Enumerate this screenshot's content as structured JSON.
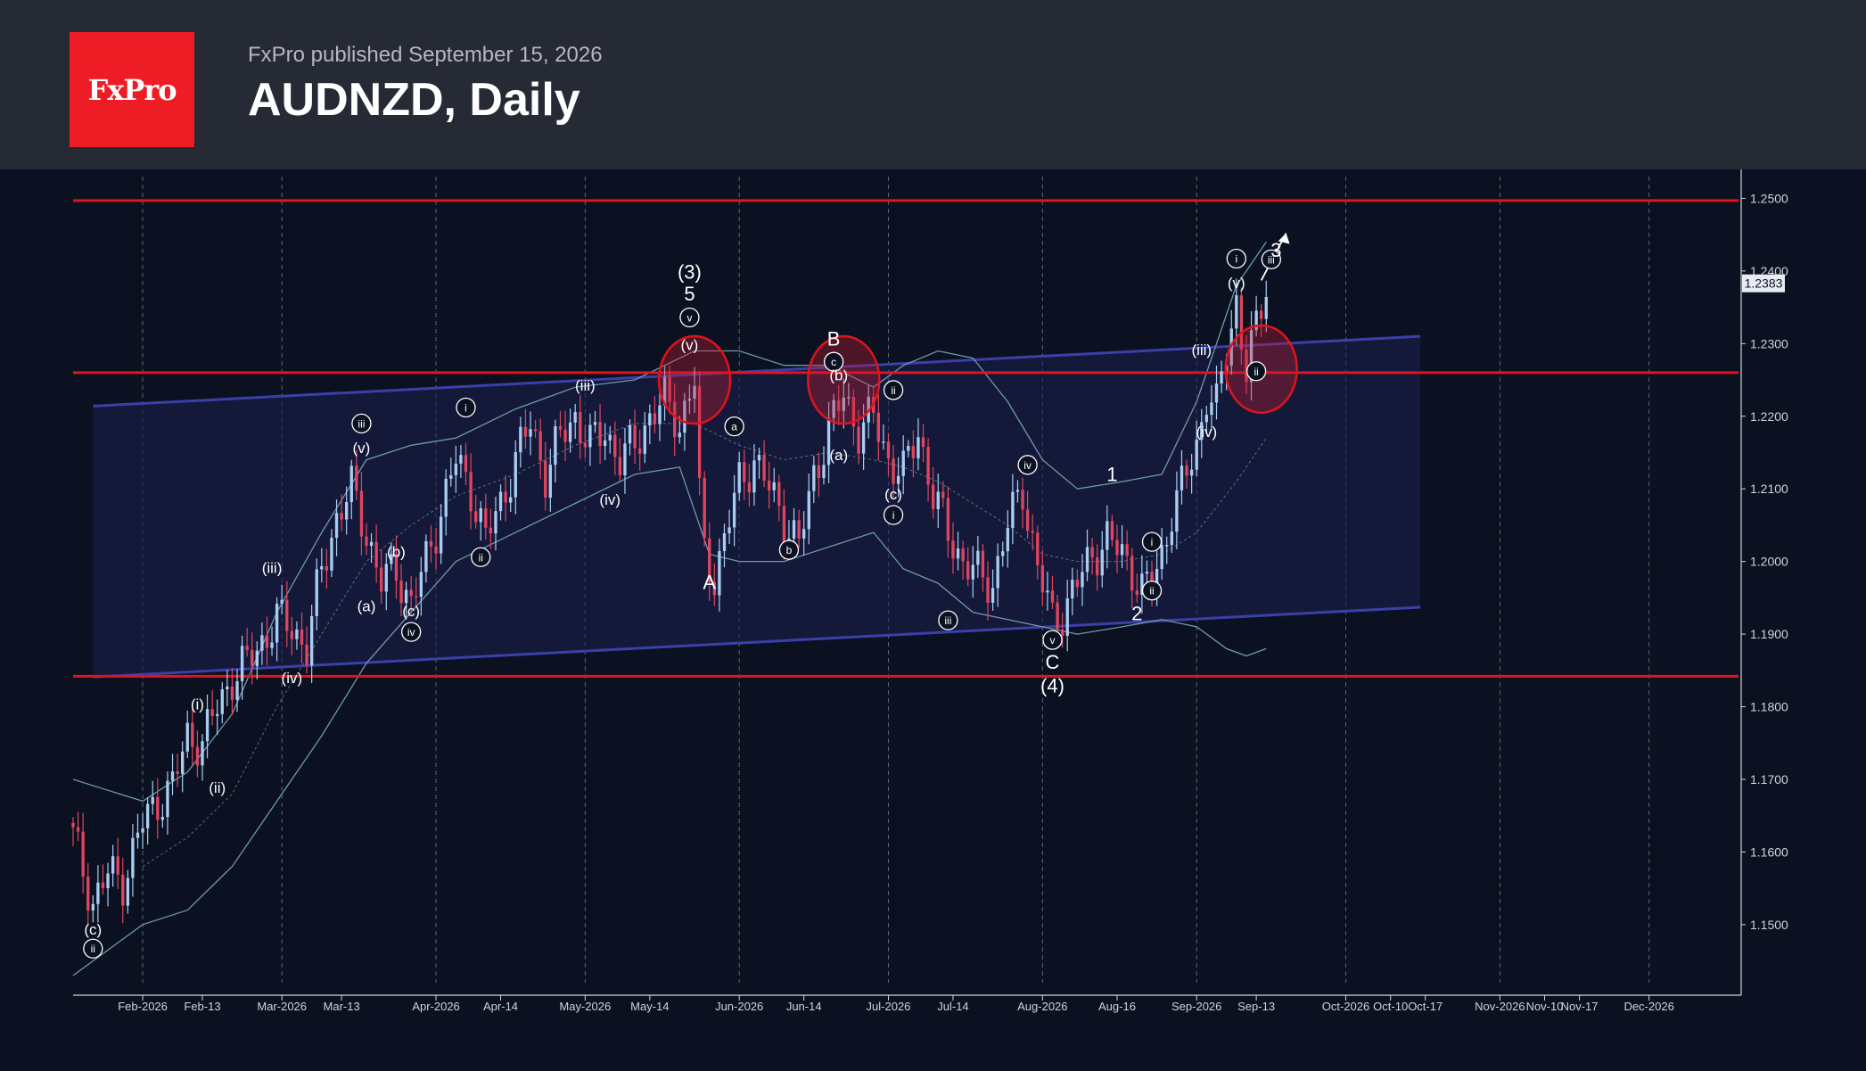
{
  "header": {
    "logo_text": "FxPro",
    "published": "FxPro published September 15, 2026",
    "title": "AUDNZD, Daily"
  },
  "colors": {
    "header_bg": "#262a35",
    "chart_bg": "#0b1120",
    "logo_bg": "#ee1c25",
    "candle_up": "#a9cdf2",
    "candle_down": "#e0455e",
    "resistance_line": "#e0141c",
    "channel_line": "#3b3fa8",
    "channel_fill": "#1d2150",
    "bollinger": "#6d9aa8"
  },
  "chart_data": {
    "type": "candlestick",
    "symbol": "AUDNZD",
    "timeframe": "Daily",
    "current_price": "1.2383",
    "ylim": [
      1.142,
      1.253
    ],
    "y_ticks": [
      "1.2500",
      "1.2400",
      "1.2300",
      "1.2200",
      "1.2100",
      "1.2000",
      "1.1900",
      "1.1800",
      "1.1700",
      "1.1600",
      "1.1500"
    ],
    "x_ticks": [
      {
        "label": "Feb-2026",
        "day": 0
      },
      {
        "label": "Feb-13",
        "day": 12
      },
      {
        "label": "Mar-2026",
        "day": 28
      },
      {
        "label": "Mar-13",
        "day": 40
      },
      {
        "label": "Apr-2026",
        "day": 59
      },
      {
        "label": "Apr-14",
        "day": 72
      },
      {
        "label": "May-2026",
        "day": 89
      },
      {
        "label": "May-14",
        "day": 102
      },
      {
        "label": "Jun-2026",
        "day": 120
      },
      {
        "label": "Jun-14",
        "day": 133
      },
      {
        "label": "Jul-2026",
        "day": 150
      },
      {
        "label": "Jul-14",
        "day": 163
      },
      {
        "label": "Aug-2026",
        "day": 181
      },
      {
        "label": "Aug-16",
        "day": 196
      },
      {
        "label": "Sep-2026",
        "day": 212
      },
      {
        "label": "Sep-13",
        "day": 224
      },
      {
        "label": "Oct-2026",
        "day": 242
      },
      {
        "label": "Oct-10",
        "day": 251
      },
      {
        "label": "Oct-17",
        "day": 258
      },
      {
        "label": "Nov-2026",
        "day": 273
      },
      {
        "label": "Nov-10",
        "day": 282
      },
      {
        "label": "Nov-17",
        "day": 289
      },
      {
        "label": "Dec-2026",
        "day": 303
      }
    ],
    "day_range": [
      -14,
      321
    ],
    "gridline_days": [
      0,
      28,
      59,
      89,
      120,
      150,
      181,
      212,
      242,
      273,
      303
    ],
    "horizontal_levels": [
      1.2497,
      1.226,
      1.1842
    ],
    "channel": {
      "upper": [
        [
          -10,
          1.2214
        ],
        [
          257,
          1.231
        ]
      ],
      "lower": [
        [
          -10,
          1.1841
        ],
        [
          257,
          1.1937
        ]
      ],
      "fill_from_day": -10,
      "fill_to_day": 257
    },
    "candle_keypoints": [
      [
        -14,
        1.162
      ],
      [
        -10,
        1.153
      ],
      [
        -7,
        1.157
      ],
      [
        -4,
        1.156
      ],
      [
        0,
        1.164
      ],
      [
        3,
        1.167
      ],
      [
        6,
        1.169
      ],
      [
        9,
        1.176
      ],
      [
        12,
        1.175
      ],
      [
        15,
        1.18
      ],
      [
        18,
        1.184
      ],
      [
        21,
        1.186
      ],
      [
        24,
        1.189
      ],
      [
        27,
        1.192
      ],
      [
        30,
        1.191
      ],
      [
        33,
        1.188
      ],
      [
        36,
        1.199
      ],
      [
        39,
        1.206
      ],
      [
        42,
        1.21
      ],
      [
        45,
        1.204
      ],
      [
        48,
        1.197
      ],
      [
        51,
        1.199
      ],
      [
        54,
        1.194
      ],
      [
        57,
        1.2
      ],
      [
        60,
        1.207
      ],
      [
        63,
        1.214
      ],
      [
        66,
        1.21
      ],
      [
        69,
        1.203
      ],
      [
        72,
        1.208
      ],
      [
        75,
        1.214
      ],
      [
        78,
        1.219
      ],
      [
        81,
        1.212
      ],
      [
        84,
        1.217
      ],
      [
        87,
        1.22
      ],
      [
        90,
        1.216
      ],
      [
        93,
        1.218
      ],
      [
        96,
        1.214
      ],
      [
        99,
        1.216
      ],
      [
        102,
        1.22
      ],
      [
        105,
        1.222
      ],
      [
        108,
        1.219
      ],
      [
        111,
        1.225
      ],
      [
        112,
        1.209
      ],
      [
        113,
        1.201
      ],
      [
        115,
        1.198
      ],
      [
        117,
        1.203
      ],
      [
        120,
        1.211
      ],
      [
        123,
        1.214
      ],
      [
        126,
        1.21
      ],
      [
        129,
        1.206
      ],
      [
        132,
        1.202
      ],
      [
        135,
        1.212
      ],
      [
        138,
        1.218
      ],
      [
        141,
        1.223
      ],
      [
        144,
        1.218
      ],
      [
        147,
        1.22
      ],
      [
        150,
        1.214
      ],
      [
        153,
        1.212
      ],
      [
        156,
        1.218
      ],
      [
        159,
        1.209
      ],
      [
        162,
        1.204
      ],
      [
        165,
        1.2
      ],
      [
        168,
        1.198
      ],
      [
        171,
        1.197
      ],
      [
        174,
        1.205
      ],
      [
        177,
        1.21
      ],
      [
        180,
        1.199
      ],
      [
        183,
        1.192
      ],
      [
        185,
        1.193
      ],
      [
        188,
        1.197
      ],
      [
        191,
        1.201
      ],
      [
        194,
        1.203
      ],
      [
        197,
        1.201
      ],
      [
        199,
        1.199
      ],
      [
        201,
        1.196
      ],
      [
        203,
        1.197
      ],
      [
        205,
        1.201
      ],
      [
        207,
        1.207
      ],
      [
        209,
        1.21
      ],
      [
        212,
        1.216
      ],
      [
        214,
        1.223
      ],
      [
        216,
        1.221
      ],
      [
        218,
        1.229
      ],
      [
        220,
        1.236
      ],
      [
        222,
        1.226
      ],
      [
        224,
        1.232
      ],
      [
        226,
        1.2383
      ]
    ],
    "bollinger_upper": [
      [
        -14,
        1.17
      ],
      [
        0,
        1.167
      ],
      [
        9,
        1.171
      ],
      [
        18,
        1.179
      ],
      [
        27,
        1.193
      ],
      [
        36,
        1.204
      ],
      [
        45,
        1.214
      ],
      [
        54,
        1.216
      ],
      [
        63,
        1.217
      ],
      [
        75,
        1.221
      ],
      [
        87,
        1.224
      ],
      [
        99,
        1.225
      ],
      [
        111,
        1.229
      ],
      [
        120,
        1.229
      ],
      [
        129,
        1.227
      ],
      [
        138,
        1.227
      ],
      [
        147,
        1.224
      ],
      [
        153,
        1.227
      ],
      [
        160,
        1.229
      ],
      [
        167,
        1.228
      ],
      [
        174,
        1.222
      ],
      [
        181,
        1.214
      ],
      [
        188,
        1.21
      ],
      [
        197,
        1.211
      ],
      [
        205,
        1.212
      ],
      [
        212,
        1.222
      ],
      [
        220,
        1.238
      ],
      [
        226,
        1.244
      ]
    ],
    "bollinger_lower": [
      [
        -14,
        1.143
      ],
      [
        -4,
        1.148
      ],
      [
        0,
        1.15
      ],
      [
        9,
        1.152
      ],
      [
        18,
        1.158
      ],
      [
        27,
        1.167
      ],
      [
        36,
        1.176
      ],
      [
        45,
        1.186
      ],
      [
        54,
        1.193
      ],
      [
        63,
        1.2
      ],
      [
        75,
        1.204
      ],
      [
        87,
        1.208
      ],
      [
        99,
        1.212
      ],
      [
        108,
        1.213
      ],
      [
        114,
        1.201
      ],
      [
        120,
        1.2
      ],
      [
        129,
        1.2
      ],
      [
        138,
        1.202
      ],
      [
        147,
        1.204
      ],
      [
        153,
        1.199
      ],
      [
        160,
        1.197
      ],
      [
        167,
        1.193
      ],
      [
        174,
        1.192
      ],
      [
        181,
        1.191
      ],
      [
        188,
        1.19
      ],
      [
        197,
        1.191
      ],
      [
        205,
        1.192
      ],
      [
        212,
        1.191
      ],
      [
        218,
        1.188
      ],
      [
        222,
        1.187
      ],
      [
        226,
        1.188
      ]
    ],
    "bollinger_mid": [
      [
        0,
        1.158
      ],
      [
        9,
        1.162
      ],
      [
        18,
        1.168
      ],
      [
        27,
        1.18
      ],
      [
        36,
        1.19
      ],
      [
        45,
        1.2
      ],
      [
        54,
        1.205
      ],
      [
        63,
        1.209
      ],
      [
        75,
        1.212
      ],
      [
        87,
        1.216
      ],
      [
        99,
        1.219
      ],
      [
        111,
        1.219
      ],
      [
        120,
        1.216
      ],
      [
        129,
        1.214
      ],
      [
        138,
        1.215
      ],
      [
        147,
        1.214
      ],
      [
        153,
        1.213
      ],
      [
        160,
        1.211
      ],
      [
        167,
        1.208
      ],
      [
        174,
        1.205
      ],
      [
        181,
        1.201
      ],
      [
        188,
        1.2
      ],
      [
        197,
        1.2
      ],
      [
        205,
        1.201
      ],
      [
        212,
        1.204
      ],
      [
        220,
        1.211
      ],
      [
        226,
        1.217
      ]
    ],
    "highlight_circles": [
      {
        "day": 111,
        "price": 1.225
      },
      {
        "day": 141,
        "price": 1.225
      },
      {
        "day": 225,
        "price": 1.2265
      }
    ],
    "forecast_arrow": {
      "from": [
        225,
        1.2387
      ],
      "to": [
        230,
        1.2452
      ]
    },
    "wave_labels": [
      {
        "text": "(3)",
        "day": 110,
        "price": 1.2398,
        "circled": false
      },
      {
        "text": "5",
        "day": 110,
        "price": 1.2368,
        "circled": false
      },
      {
        "text": "v",
        "day": 110,
        "price": 1.2336,
        "circled": true
      },
      {
        "text": "(v)",
        "day": 110,
        "price": 1.23,
        "circled": false
      },
      {
        "text": "B",
        "day": 139,
        "price": 1.2306,
        "circled": false
      },
      {
        "text": "c",
        "day": 139,
        "price": 1.2275,
        "circled": true
      },
      {
        "text": "(b)",
        "day": 140,
        "price": 1.2258,
        "circled": false
      },
      {
        "text": "ii",
        "day": 151,
        "price": 1.2236,
        "circled": true
      },
      {
        "text": "a",
        "day": 119,
        "price": 1.2186,
        "circled": true
      },
      {
        "text": "(a)",
        "day": 140,
        "price": 1.2148,
        "circled": false
      },
      {
        "text": "(c)",
        "day": 151,
        "price": 1.2094,
        "circled": false
      },
      {
        "text": "i",
        "day": 151,
        "price": 1.2064,
        "circled": true
      },
      {
        "text": "b",
        "day": 130,
        "price": 1.2016,
        "circled": true
      },
      {
        "text": "A",
        "day": 114,
        "price": 1.1971,
        "circled": false
      },
      {
        "text": "(iii)",
        "day": 89,
        "price": 1.2244,
        "circled": false
      },
      {
        "text": "(iv)",
        "day": 94,
        "price": 1.2087,
        "circled": false
      },
      {
        "text": "i",
        "day": 65,
        "price": 1.2212,
        "circled": true
      },
      {
        "text": "ii",
        "day": 68,
        "price": 1.2006,
        "circled": true
      },
      {
        "text": "iii",
        "day": 44,
        "price": 1.219,
        "circled": true
      },
      {
        "text": "(v)",
        "day": 44,
        "price": 1.2158,
        "circled": false
      },
      {
        "text": "(b)",
        "day": 51,
        "price": 1.2015,
        "circled": false
      },
      {
        "text": "(a)",
        "day": 45,
        "price": 1.194,
        "circled": false
      },
      {
        "text": "(c)",
        "day": 54,
        "price": 1.1933,
        "circled": false
      },
      {
        "text": "iv",
        "day": 54,
        "price": 1.1903,
        "circled": true
      },
      {
        "text": "(iii)",
        "day": 26,
        "price": 1.1993,
        "circled": false
      },
      {
        "text": "(iv)",
        "day": 30,
        "price": 1.1841,
        "circled": false
      },
      {
        "text": "(i)",
        "day": 11,
        "price": 1.1805,
        "circled": false
      },
      {
        "text": "(ii)",
        "day": 15,
        "price": 1.169,
        "circled": false
      },
      {
        "text": "(c)",
        "day": -10,
        "price": 1.1495,
        "circled": false
      },
      {
        "text": "ii",
        "day": -10,
        "price": 1.1467,
        "circled": true
      },
      {
        "text": "iv",
        "day": 178,
        "price": 1.2133,
        "circled": true
      },
      {
        "text": "iii",
        "day": 162,
        "price": 1.1919,
        "circled": true
      },
      {
        "text": "v",
        "day": 183,
        "price": 1.1892,
        "circled": true
      },
      {
        "text": "C",
        "day": 183,
        "price": 1.1861,
        "circled": false
      },
      {
        "text": "(4)",
        "day": 183,
        "price": 1.1828,
        "circled": false
      },
      {
        "text": "1",
        "day": 195,
        "price": 1.2119,
        "circled": false
      },
      {
        "text": "2",
        "day": 200,
        "price": 1.1928,
        "circled": false
      },
      {
        "text": "i",
        "day": 203,
        "price": 1.2027,
        "circled": true
      },
      {
        "text": "ii",
        "day": 203,
        "price": 1.196,
        "circled": true
      },
      {
        "text": "(iii)",
        "day": 213,
        "price": 1.2293,
        "circled": false
      },
      {
        "text": "(iv)",
        "day": 214,
        "price": 1.218,
        "circled": false
      },
      {
        "text": "(v)",
        "day": 220,
        "price": 1.2385,
        "circled": false
      },
      {
        "text": "i",
        "day": 220,
        "price": 1.2417,
        "circled": true
      },
      {
        "text": "iii",
        "day": 227,
        "price": 1.2416,
        "circled": true
      },
      {
        "text": "3",
        "day": 228,
        "price": 1.2428,
        "circled": false
      },
      {
        "text": "ii",
        "day": 224,
        "price": 1.2262,
        "circled": true
      }
    ]
  }
}
